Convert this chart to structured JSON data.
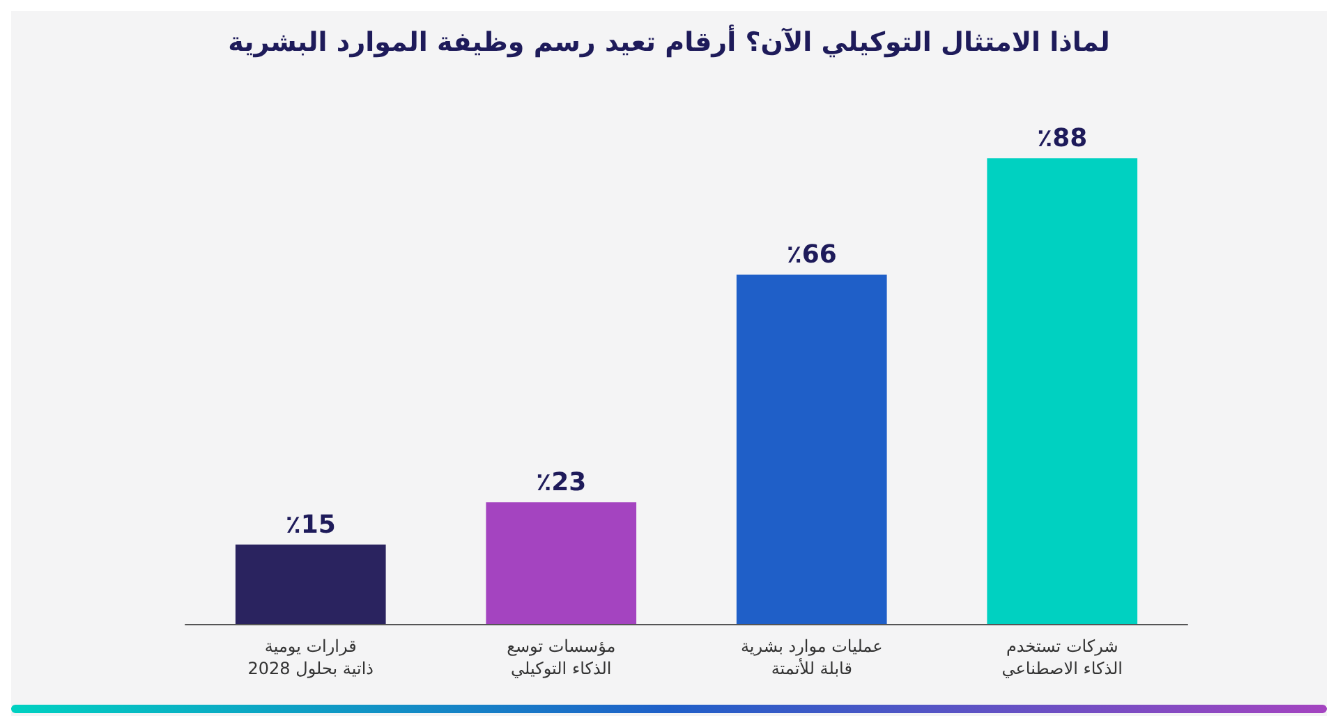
{
  "chart_data": {
    "type": "bar",
    "title": "لماذا الامتثال التوكيلي الآن؟ أرقام تعيد رسم وظيفة الموارد البشرية",
    "categories": [
      "قرارات يومية\nذاتية بحلول 2028",
      "مؤسسات توسع\nالذكاء التوكيلي",
      "عمليات موارد بشرية\nقابلة للأتمتة",
      "شركات تستخدم\nالذكاء الاصطناعي"
    ],
    "values": [
      15,
      23,
      66,
      88
    ],
    "colors": [
      "#2a235f",
      "#a444c0",
      "#1f5fc8",
      "#00d1c1"
    ],
    "value_labels": [
      "٪15",
      "٪23",
      "٪66",
      "٪88"
    ]
  }
}
